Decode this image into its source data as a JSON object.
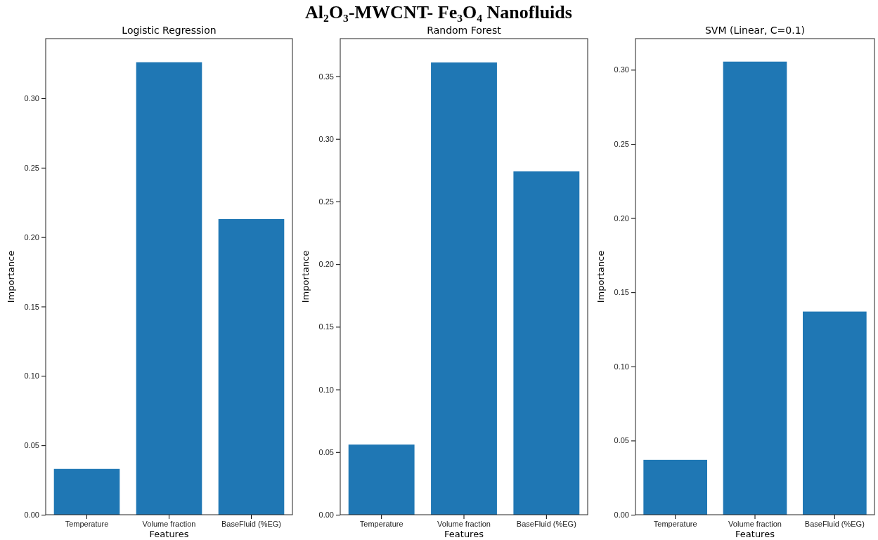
{
  "chart_data": [
    {
      "type": "other",
      "title": "Al₂O₃-MWCNT- Fe₃O₄ Nanofluids"
    },
    {
      "type": "bar",
      "title": "Logistic Regression",
      "xlabel": "Features",
      "ylabel": "Importance",
      "categories": [
        "Temperature",
        "Volume fraction",
        "BaseFluid (%EG)"
      ],
      "values": [
        0.033,
        0.326,
        0.213
      ],
      "color": "#1f77b4",
      "ylim": [
        0,
        0.343
      ],
      "yticks": [
        {
          "value": 0,
          "label": "0.00"
        },
        0.05,
        {
          "value": 0.1,
          "label": "0.10"
        },
        0.15,
        {
          "value": 0.2,
          "label": "0.20"
        },
        0.25,
        {
          "value": 0.3,
          "label": "0.30"
        }
      ]
    },
    {
      "type": "bar",
      "title": "Random Forest",
      "xlabel": "Features",
      "ylabel": "Importance",
      "categories": [
        "Temperature",
        "Volume fraction",
        "BaseFluid (%EG)"
      ],
      "values": [
        0.056,
        0.361,
        0.274
      ],
      "color": "#1f77b4",
      "ylim": [
        0,
        0.38
      ],
      "yticks": [
        {
          "value": 0,
          "label": "0.00"
        },
        0.05,
        {
          "value": 0.1,
          "label": "0.10"
        },
        0.15,
        {
          "value": 0.2,
          "label": "0.20"
        },
        0.25,
        {
          "value": 0.3,
          "label": "0.30"
        },
        0.35
      ]
    },
    {
      "type": "bar",
      "title": "SVM (Linear, C=0.1)",
      "xlabel": "Features",
      "ylabel": "Importance",
      "categories": [
        "Temperature",
        "Volume fraction",
        "BaseFluid (%EG)"
      ],
      "values": [
        0.037,
        0.3055,
        0.137
      ],
      "color": "#1f77b4",
      "ylim": [
        0,
        0.321
      ],
      "yticks": [
        {
          "value": 0,
          "label": "0.00"
        },
        0.05,
        {
          "value": 0.1,
          "label": "0.10"
        },
        0.15,
        {
          "value": 0.2,
          "label": "0.20"
        },
        0.25,
        {
          "value": 0.3,
          "label": "0.30"
        }
      ]
    }
  ]
}
